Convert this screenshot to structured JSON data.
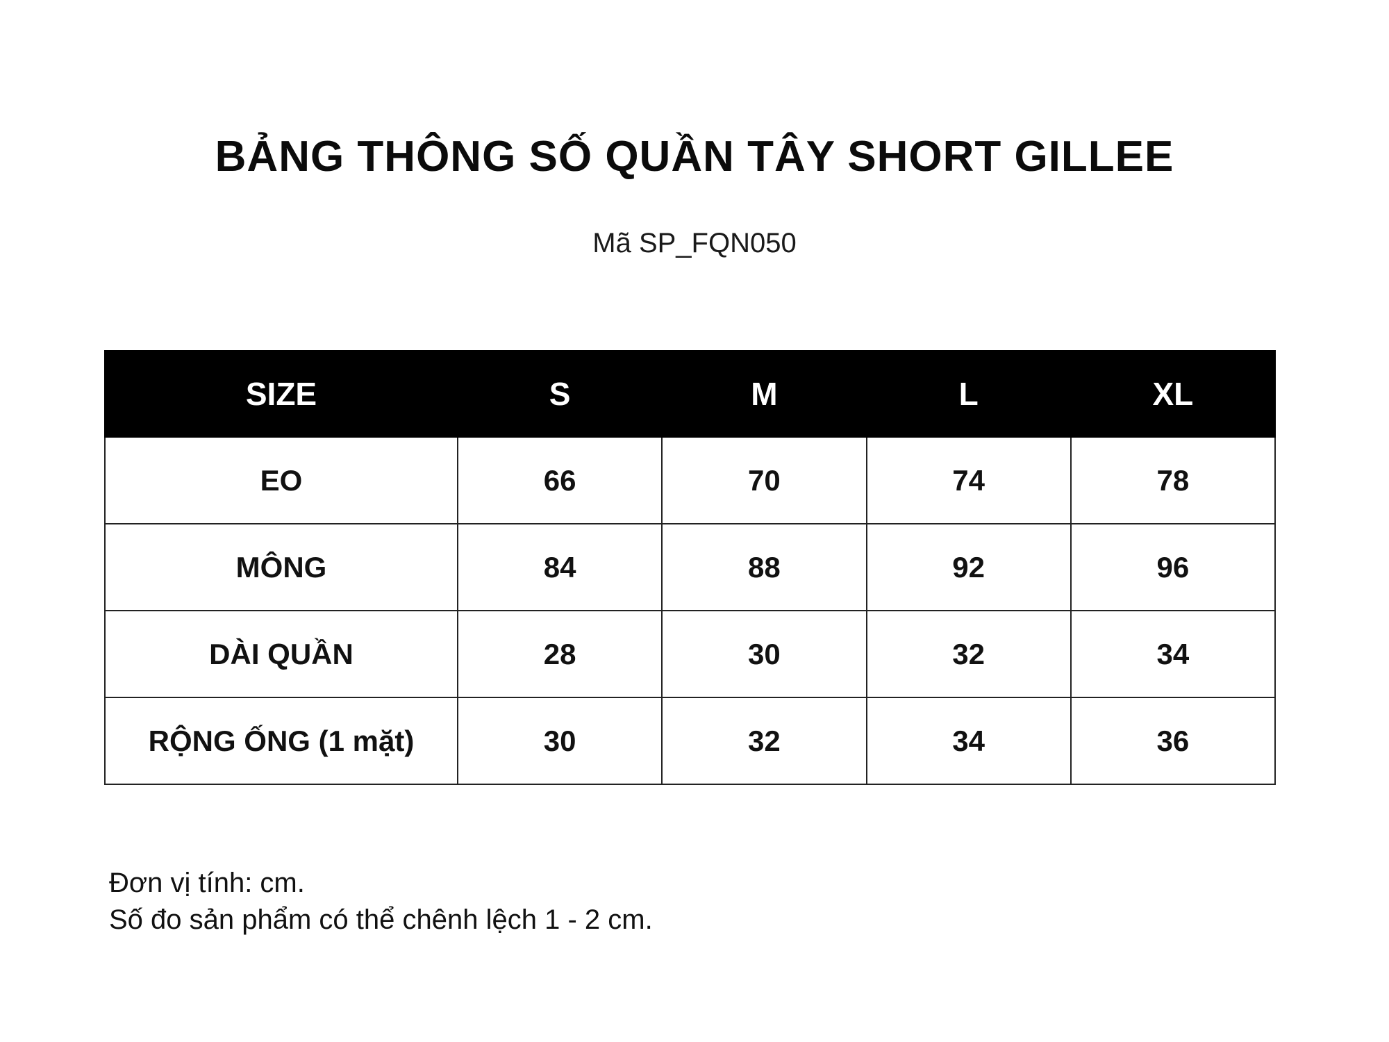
{
  "title": "BẢNG THÔNG SỐ QUẦN TÂY SHORT GILLEE",
  "subtitle": "Mã SP_FQN050",
  "table": {
    "headers": [
      "SIZE",
      "S",
      "M",
      "L",
      "XL"
    ],
    "rows": [
      [
        "EO",
        "66",
        "70",
        "74",
        "78"
      ],
      [
        "MÔNG",
        "84",
        "88",
        "92",
        "96"
      ],
      [
        "DÀI QUẦN",
        "28",
        "30",
        "32",
        "34"
      ],
      [
        "RỘNG ỐNG (1 mặt)",
        "30",
        "32",
        "34",
        "36"
      ]
    ]
  },
  "footer": {
    "unit_note": "Đơn vị tính: cm.",
    "tolerance_note": "Số đo sản phẩm có thể chênh lệch 1 - 2 cm."
  }
}
